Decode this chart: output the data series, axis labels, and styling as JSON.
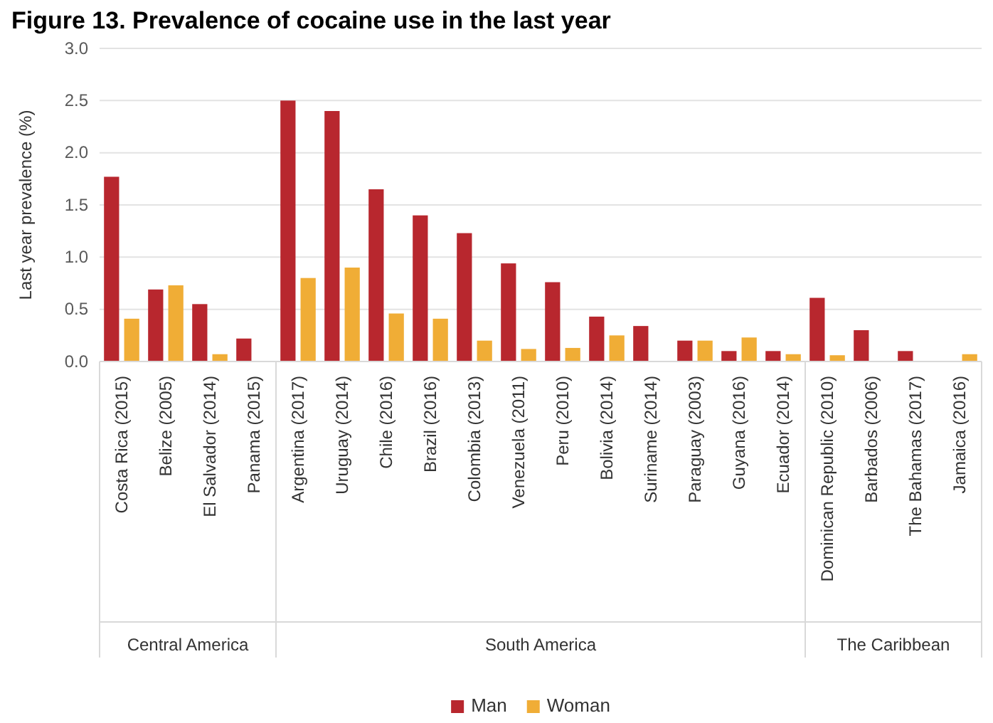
{
  "chart_data": {
    "type": "bar",
    "title": "Figure 13. Prevalence of cocaine use in the last year",
    "ylabel": "Last year prevalence (%)",
    "categories": [
      "Costa Rica (2015)",
      "Belize (2005)",
      "El Salvador (2014)",
      "Panama (2015)",
      "Argentina (2017)",
      "Uruguay (2014)",
      "Chile (2016)",
      "Brazil (2016)",
      "Colombia (2013)",
      "Venezuela (2011)",
      "Peru (2010)",
      "Bolivia (2014)",
      "Suriname (2014)",
      "Paraguay (2003)",
      "Guyana (2016)",
      "Ecuador (2014)",
      "Dominican Republic (2010)",
      "Barbados (2006)",
      "The Bahamas (2017)",
      "Jamaica (2016)"
    ],
    "series": [
      {
        "name": "Man",
        "color": "#b8272e",
        "values": [
          1.77,
          0.69,
          0.55,
          0.22,
          2.5,
          2.4,
          1.65,
          1.4,
          1.23,
          0.94,
          0.76,
          0.43,
          0.34,
          0.2,
          0.1,
          0.1,
          0.61,
          0.3,
          0.1,
          null
        ]
      },
      {
        "name": "Woman",
        "color": "#f0ad36",
        "values": [
          0.41,
          0.73,
          0.07,
          null,
          0.8,
          0.9,
          0.46,
          0.41,
          0.2,
          0.12,
          0.13,
          0.25,
          null,
          0.2,
          0.23,
          0.07,
          0.06,
          null,
          null,
          0.07
        ]
      }
    ],
    "annotations": [
      "Central America",
      "South America",
      "The Caribbean"
    ],
    "ylim": [
      0,
      3
    ],
    "yticks": [
      {
        "value": 0,
        "label": "0.0"
      },
      {
        "value": 0.5,
        "label": "0.5"
      },
      {
        "value": 1,
        "label": "1.0"
      },
      {
        "value": 1.5,
        "label": "1.5"
      },
      {
        "value": 2,
        "label": "2.0"
      },
      {
        "value": 2.5,
        "label": "2.5"
      },
      {
        "value": 3,
        "label": "3.0"
      }
    ],
    "grid": "y",
    "legend": "bottom"
  }
}
